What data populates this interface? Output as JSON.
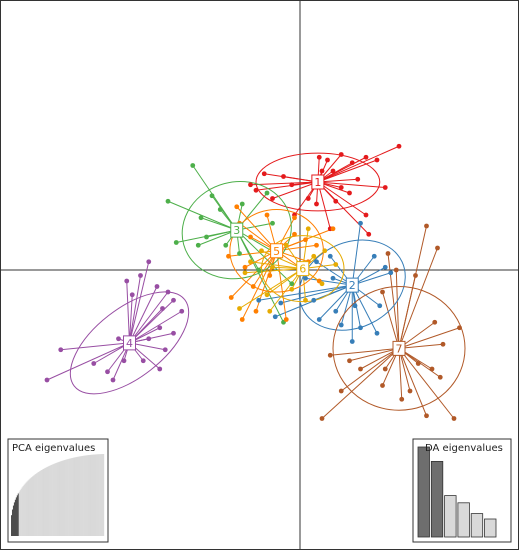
{
  "chart_data": {
    "type": "scatter",
    "xlim": [
      -10,
      10
    ],
    "ylim": [
      -10,
      10
    ],
    "axes_through_origin": true,
    "grid": false,
    "legend": "none",
    "groups": [
      {
        "label": "1",
        "color": "#e41a1c",
        "center": [
          0.65,
          3.2
        ],
        "ellipse": {
          "rx": 2.25,
          "ry": 1.05,
          "angle": 0
        },
        "points": [
          [
            1.5,
            4.2
          ],
          [
            1.9,
            3.9
          ],
          [
            2.4,
            4.1
          ],
          [
            3.6,
            4.5
          ],
          [
            2.8,
            4.0
          ],
          [
            1.2,
            3.6
          ],
          [
            1.0,
            4.0
          ],
          [
            0.7,
            4.1
          ],
          [
            3.1,
            3.0
          ],
          [
            2.1,
            3.3
          ],
          [
            1.8,
            2.8
          ],
          [
            1.3,
            2.5
          ],
          [
            0.6,
            2.4
          ],
          [
            2.4,
            2.0
          ],
          [
            1.1,
            1.5
          ],
          [
            0.3,
            2.6
          ],
          [
            -0.6,
            3.4
          ],
          [
            -1.3,
            3.5
          ],
          [
            -1.0,
            2.6
          ],
          [
            -1.6,
            2.9
          ],
          [
            -0.3,
            3.1
          ],
          [
            -1.8,
            3.1
          ],
          [
            -0.2,
            2.0
          ],
          [
            2.5,
            1.3
          ],
          [
            1.5,
            3.0
          ],
          [
            0.8,
            3.6
          ]
        ]
      },
      {
        "label": "2",
        "color": "#377eb8",
        "center": [
          1.9,
          -0.55
        ],
        "ellipse": {
          "rx": 2.0,
          "ry": 1.55,
          "angle": -25
        },
        "points": [
          [
            3.1,
            0.1
          ],
          [
            3.3,
            -0.1
          ],
          [
            2.7,
            0.5
          ],
          [
            2.2,
            1.7
          ],
          [
            1.2,
            -0.3
          ],
          [
            1.1,
            0.5
          ],
          [
            0.6,
            0.3
          ],
          [
            0.2,
            -0.3
          ],
          [
            0.5,
            -1.1
          ],
          [
            0.7,
            -1.8
          ],
          [
            1.5,
            -2.0
          ],
          [
            1.9,
            -2.6
          ],
          [
            2.2,
            -2.1
          ],
          [
            2.8,
            -2.3
          ],
          [
            2.0,
            -1.3
          ],
          [
            -0.7,
            -1.2
          ],
          [
            -1.5,
            -1.1
          ],
          [
            -0.9,
            -1.7
          ],
          [
            2.9,
            -1.3
          ],
          [
            1.3,
            -1.5
          ]
        ]
      },
      {
        "label": "3",
        "color": "#4daf4a",
        "center": [
          -2.3,
          1.45
        ],
        "ellipse": {
          "rx": 2.0,
          "ry": 1.75,
          "angle": -15
        },
        "points": [
          [
            -3.9,
            3.8
          ],
          [
            -4.8,
            2.5
          ],
          [
            -3.2,
            2.7
          ],
          [
            -3.6,
            1.9
          ],
          [
            -2.9,
            2.2
          ],
          [
            -2.1,
            2.4
          ],
          [
            -1.2,
            2.8
          ],
          [
            -3.4,
            1.2
          ],
          [
            -4.5,
            1.0
          ],
          [
            -3.7,
            0.9
          ],
          [
            -2.7,
            0.9
          ],
          [
            -2.2,
            0.6
          ],
          [
            -1.0,
            1.7
          ],
          [
            -0.7,
            0.5
          ],
          [
            -1.5,
            0.0
          ],
          [
            -0.3,
            -0.5
          ],
          [
            -0.6,
            -1.9
          ]
        ]
      },
      {
        "label": "4",
        "color": "#984ea3",
        "center": [
          -6.2,
          -2.65
        ],
        "ellipse": {
          "rx": 2.55,
          "ry": 1.25,
          "angle": -38
        },
        "points": [
          [
            -5.5,
            0.3
          ],
          [
            -5.8,
            -0.2
          ],
          [
            -5.2,
            -0.6
          ],
          [
            -4.8,
            -0.8
          ],
          [
            -4.6,
            -1.1
          ],
          [
            -6.3,
            -0.4
          ],
          [
            -4.3,
            -1.5
          ],
          [
            -6.1,
            -0.9
          ],
          [
            -5.0,
            -1.4
          ],
          [
            -4.6,
            -2.3
          ],
          [
            -5.1,
            -2.1
          ],
          [
            -5.5,
            -2.5
          ],
          [
            -4.9,
            -2.9
          ],
          [
            -5.7,
            -3.3
          ],
          [
            -5.1,
            -3.6
          ],
          [
            -6.4,
            -3.3
          ],
          [
            -7.0,
            -3.7
          ],
          [
            -6.8,
            -4.0
          ],
          [
            -7.5,
            -3.4
          ],
          [
            -8.7,
            -2.9
          ],
          [
            -9.2,
            -4.0
          ],
          [
            -6.6,
            -2.5
          ]
        ]
      },
      {
        "label": "5",
        "color": "#ff7f00",
        "center": [
          -0.85,
          0.7
        ],
        "ellipse": {
          "rx": 1.7,
          "ry": 1.5,
          "angle": 0
        },
        "points": [
          [
            -2.3,
            2.3
          ],
          [
            -1.2,
            2.0
          ],
          [
            -0.2,
            1.3
          ],
          [
            0.6,
            0.9
          ],
          [
            1.2,
            1.5
          ],
          [
            -1.8,
            1.2
          ],
          [
            -2.2,
            1.7
          ],
          [
            -2.0,
            0.1
          ],
          [
            -1.1,
            -0.2
          ],
          [
            -2.5,
            -1.0
          ],
          [
            -0.5,
            -1.8
          ],
          [
            0.7,
            -0.4
          ],
          [
            -0.2,
            1.9
          ],
          [
            -1.7,
            -0.6
          ],
          [
            0.3,
            0.3
          ],
          [
            -2.1,
            -1.8
          ],
          [
            -1.6,
            -1.5
          ],
          [
            0.2,
            1.1
          ],
          [
            -2.6,
            0.5
          ]
        ]
      },
      {
        "label": "6",
        "color": "#e6ab02",
        "center": [
          0.1,
          0.05
        ],
        "ellipse": {
          "rx": 1.5,
          "ry": 1.2,
          "angle": 0
        },
        "points": [
          [
            0.3,
            1.5
          ],
          [
            0.9,
            0.7
          ],
          [
            0.5,
            0.5
          ],
          [
            -0.5,
            0.9
          ],
          [
            -1.4,
            0.7
          ],
          [
            -1.0,
            0.1
          ],
          [
            -1.8,
            0.3
          ],
          [
            -2.0,
            -0.1
          ],
          [
            -1.2,
            -0.9
          ],
          [
            -0.3,
            -0.7
          ],
          [
            0.8,
            -0.5
          ],
          [
            1.3,
            0.2
          ],
          [
            -2.2,
            -1.4
          ],
          [
            0.2,
            -1.1
          ],
          [
            -1.1,
            -1.5
          ]
        ]
      },
      {
        "label": "7",
        "color": "#b15928",
        "center": [
          3.6,
          -2.85
        ],
        "ellipse": {
          "rx": 2.4,
          "ry": 2.25,
          "angle": 0
        },
        "points": [
          [
            4.6,
            1.6
          ],
          [
            5.0,
            0.8
          ],
          [
            3.2,
            0.6
          ],
          [
            3.5,
            0.0
          ],
          [
            4.2,
            -0.2
          ],
          [
            3.0,
            -0.8
          ],
          [
            4.9,
            -1.9
          ],
          [
            5.8,
            -2.1
          ],
          [
            5.2,
            -2.7
          ],
          [
            1.1,
            -3.1
          ],
          [
            1.8,
            -3.3
          ],
          [
            4.3,
            -3.4
          ],
          [
            4.8,
            -3.6
          ],
          [
            5.1,
            -3.9
          ],
          [
            3.1,
            -3.6
          ],
          [
            2.2,
            -3.6
          ],
          [
            3.0,
            -4.2
          ],
          [
            3.7,
            -4.7
          ],
          [
            4.0,
            -4.4
          ],
          [
            4.6,
            -5.3
          ],
          [
            5.6,
            -5.4
          ],
          [
            1.5,
            -4.4
          ],
          [
            0.8,
            -5.4
          ]
        ]
      }
    ],
    "insets": [
      {
        "name": "PCA eigenvalues",
        "position": "bottom-left",
        "type": "bar",
        "values": [
          1.0,
          0.99,
          0.98,
          0.97,
          0.96,
          0.95,
          0.94,
          0.93,
          0.92,
          0.91,
          0.9,
          0.89,
          0.88,
          0.87,
          0.86,
          0.85,
          0.84,
          0.83,
          0.82,
          0.81,
          0.8,
          0.79,
          0.78,
          0.77,
          0.76,
          0.75,
          0.74,
          0.73,
          0.72,
          0.71,
          0.7,
          0.69,
          0.68,
          0.67,
          0.66,
          0.65,
          0.64,
          0.63,
          0.62,
          0.61,
          0.6,
          0.59,
          0.58,
          0.57,
          0.56,
          0.55,
          0.54,
          0.53,
          0.52,
          0.51,
          0.5,
          0.49,
          0.48,
          0.47,
          0.46,
          0.45,
          0.44,
          0.43,
          0.42,
          0.41,
          0.4,
          0.39,
          0.38,
          0.37,
          0.36,
          0.35,
          0.34,
          0.33,
          0.32,
          0.31,
          0.3,
          0.29,
          0.28,
          0.27,
          0.26,
          0.25,
          0.24,
          0.23,
          0.22,
          0.21,
          0.2,
          0.19,
          0.18,
          0.17,
          0.16,
          0.15,
          0.14,
          0.13,
          0.12,
          0.11,
          0.1,
          0.09,
          0.08,
          0.07,
          0.06,
          0.05
        ],
        "retained": 8,
        "colors": {
          "retained": "#4d4d4d",
          "other": "#d9d9d9"
        }
      },
      {
        "name": "DA eigenvalues",
        "position": "bottom-right",
        "type": "bar",
        "values": [
          1.0,
          0.84,
          0.46,
          0.38,
          0.26,
          0.2
        ],
        "colors": [
          "#6e6e6e",
          "#6e6e6e",
          "#d9d9d9",
          "#d9d9d9",
          "#d9d9d9",
          "#d9d9d9"
        ]
      }
    ]
  }
}
